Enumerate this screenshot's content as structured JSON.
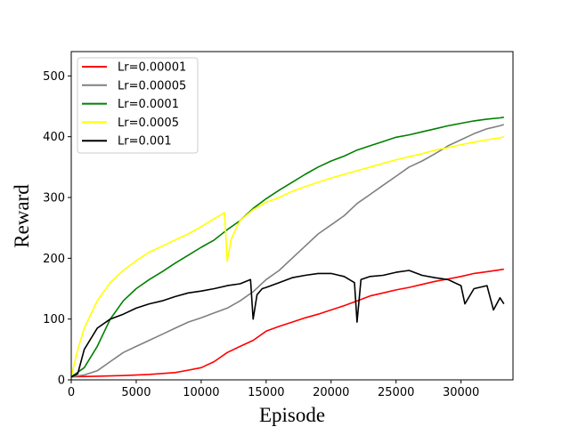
{
  "chart_data": {
    "type": "line",
    "title": "",
    "xlabel": "Episode",
    "ylabel": "Reward",
    "xlim": [
      0,
      34000
    ],
    "ylim": [
      0,
      540
    ],
    "xticks": [
      0,
      5000,
      10000,
      15000,
      20000,
      25000,
      30000
    ],
    "yticks": [
      0,
      100,
      200,
      300,
      400,
      500
    ],
    "grid": false,
    "legend_position": "top-left",
    "series": [
      {
        "name": "Lr=0.00001",
        "color": "#ff0000",
        "x": [
          0,
          2000,
          4000,
          6000,
          8000,
          9000,
          10000,
          11000,
          12000,
          13000,
          14000,
          15000,
          16000,
          17000,
          18000,
          19000,
          20000,
          21000,
          22000,
          23000,
          24000,
          25000,
          26000,
          27000,
          28000,
          29000,
          30000,
          31000,
          32000,
          33000,
          33300
        ],
        "y": [
          5,
          6,
          7,
          9,
          12,
          16,
          20,
          30,
          45,
          55,
          65,
          80,
          88,
          95,
          102,
          108,
          115,
          122,
          130,
          138,
          143,
          148,
          152,
          157,
          162,
          166,
          170,
          175,
          178,
          181,
          182
        ]
      },
      {
        "name": "Lr=0.00005",
        "color": "#808080",
        "x": [
          0,
          1000,
          2000,
          3000,
          4000,
          5000,
          6000,
          7000,
          8000,
          9000,
          10000,
          11000,
          12000,
          13000,
          14000,
          15000,
          16000,
          17000,
          18000,
          19000,
          20000,
          21000,
          22000,
          23000,
          24000,
          25000,
          26000,
          27000,
          28000,
          29000,
          30000,
          31000,
          32000,
          33000,
          33300
        ],
        "y": [
          5,
          8,
          15,
          30,
          45,
          55,
          65,
          75,
          85,
          95,
          102,
          110,
          118,
          130,
          145,
          165,
          180,
          200,
          220,
          240,
          255,
          270,
          290,
          305,
          320,
          335,
          350,
          360,
          372,
          385,
          395,
          405,
          413,
          418,
          420
        ]
      },
      {
        "name": "Lr=0.0001",
        "color": "#008000",
        "x": [
          0,
          1000,
          2000,
          3000,
          4000,
          5000,
          6000,
          7000,
          8000,
          9000,
          10000,
          11000,
          12000,
          13000,
          14000,
          15000,
          16000,
          17000,
          18000,
          19000,
          20000,
          21000,
          22000,
          23000,
          24000,
          25000,
          26000,
          27000,
          28000,
          29000,
          30000,
          31000,
          32000,
          33000,
          33300
        ],
        "y": [
          5,
          20,
          55,
          100,
          130,
          150,
          165,
          178,
          192,
          205,
          218,
          230,
          247,
          262,
          282,
          298,
          312,
          325,
          338,
          350,
          360,
          368,
          378,
          385,
          392,
          399,
          403,
          408,
          413,
          418,
          422,
          426,
          429,
          431,
          432
        ]
      },
      {
        "name": "Lr=0.0005",
        "color": "#ffff00",
        "x": [
          0,
          500,
          1000,
          2000,
          3000,
          4000,
          5000,
          6000,
          7000,
          8000,
          9000,
          10000,
          11000,
          11800,
          12000,
          12300,
          12700,
          13000,
          14000,
          15000,
          16000,
          17000,
          18000,
          19000,
          20000,
          21000,
          22000,
          23000,
          24000,
          25000,
          26000,
          27000,
          28000,
          29000,
          30000,
          31000,
          32000,
          33000,
          33300
        ],
        "y": [
          5,
          50,
          85,
          130,
          160,
          180,
          196,
          210,
          220,
          230,
          240,
          252,
          265,
          275,
          195,
          230,
          250,
          262,
          280,
          292,
          300,
          310,
          318,
          325,
          332,
          338,
          344,
          350,
          356,
          362,
          367,
          372,
          378,
          382,
          387,
          391,
          395,
          398,
          400
        ]
      },
      {
        "name": "Lr=0.001",
        "color": "#000000",
        "x": [
          0,
          500,
          1000,
          2000,
          3000,
          4000,
          5000,
          6000,
          7000,
          8000,
          9000,
          10000,
          11000,
          12000,
          13000,
          13800,
          14000,
          14300,
          14700,
          15000,
          16000,
          17000,
          18000,
          19000,
          20000,
          21000,
          21800,
          22000,
          22300,
          23000,
          24000,
          25000,
          26000,
          27000,
          28000,
          29000,
          30000,
          30300,
          31000,
          32000,
          32500,
          33000,
          33300
        ],
        "y": [
          5,
          10,
          50,
          85,
          100,
          108,
          118,
          125,
          130,
          137,
          143,
          146,
          150,
          155,
          158,
          165,
          100,
          140,
          150,
          152,
          160,
          168,
          172,
          175,
          175,
          170,
          160,
          95,
          165,
          170,
          172,
          177,
          180,
          172,
          168,
          165,
          155,
          125,
          150,
          155,
          115,
          135,
          125
        ]
      }
    ]
  }
}
